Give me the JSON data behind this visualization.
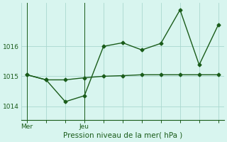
{
  "line1_x": [
    0,
    1,
    2,
    3,
    4,
    5,
    6,
    7,
    8,
    9,
    10
  ],
  "line1_y": [
    1015.05,
    1014.88,
    1014.15,
    1014.35,
    1016.0,
    1016.12,
    1015.88,
    1016.1,
    1017.22,
    1015.38,
    1016.72
  ],
  "line2_x": [
    0,
    1,
    2,
    3,
    4,
    5,
    6,
    7,
    8,
    9,
    10
  ],
  "line2_y": [
    1015.05,
    1014.88,
    1014.88,
    1014.95,
    1015.0,
    1015.02,
    1015.05,
    1015.05,
    1015.05,
    1015.05,
    1015.05
  ],
  "line_color": "#1a5c1a",
  "bg_color": "#d8f5ef",
  "grid_color": "#aad8cf",
  "xlabel": "Pression niveau de la mer( hPa )",
  "xtick_labels_text": [
    "Mer",
    "Jeu"
  ],
  "xtick_labels_pos": [
    0,
    3
  ],
  "yticks": [
    1014,
    1015,
    1016
  ],
  "ylim": [
    1013.55,
    1017.45
  ],
  "xlim": [
    -0.3,
    10.3
  ],
  "vline_x_mer": 0,
  "vline_x_jeu": 3,
  "marker": "D",
  "markersize": 2.5,
  "linewidth": 1.0,
  "xlabel_fontsize": 7.5,
  "tick_fontsize": 6.5
}
